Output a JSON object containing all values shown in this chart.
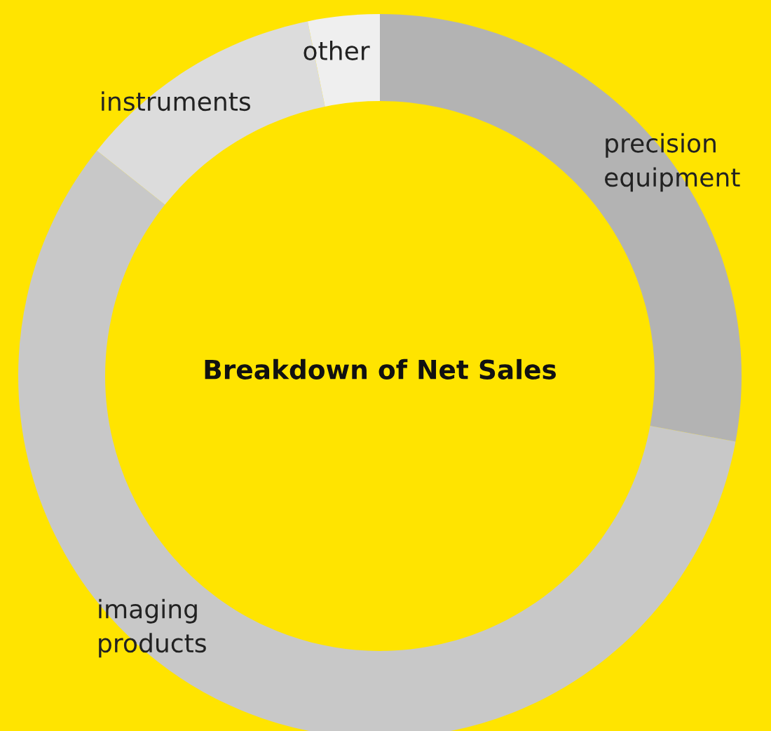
{
  "chart_data": {
    "type": "donut",
    "title": "Breakdown of Net Sales",
    "categories": [
      "precision\nequipment",
      "imaging\nproducts",
      "instruments",
      "other"
    ],
    "values": [
      27.9,
      57.8,
      11.1,
      3.2
    ],
    "colors": [
      "#b3b3b3",
      "#c8c8c8",
      "#dcdcdc",
      "#efefef"
    ]
  }
}
